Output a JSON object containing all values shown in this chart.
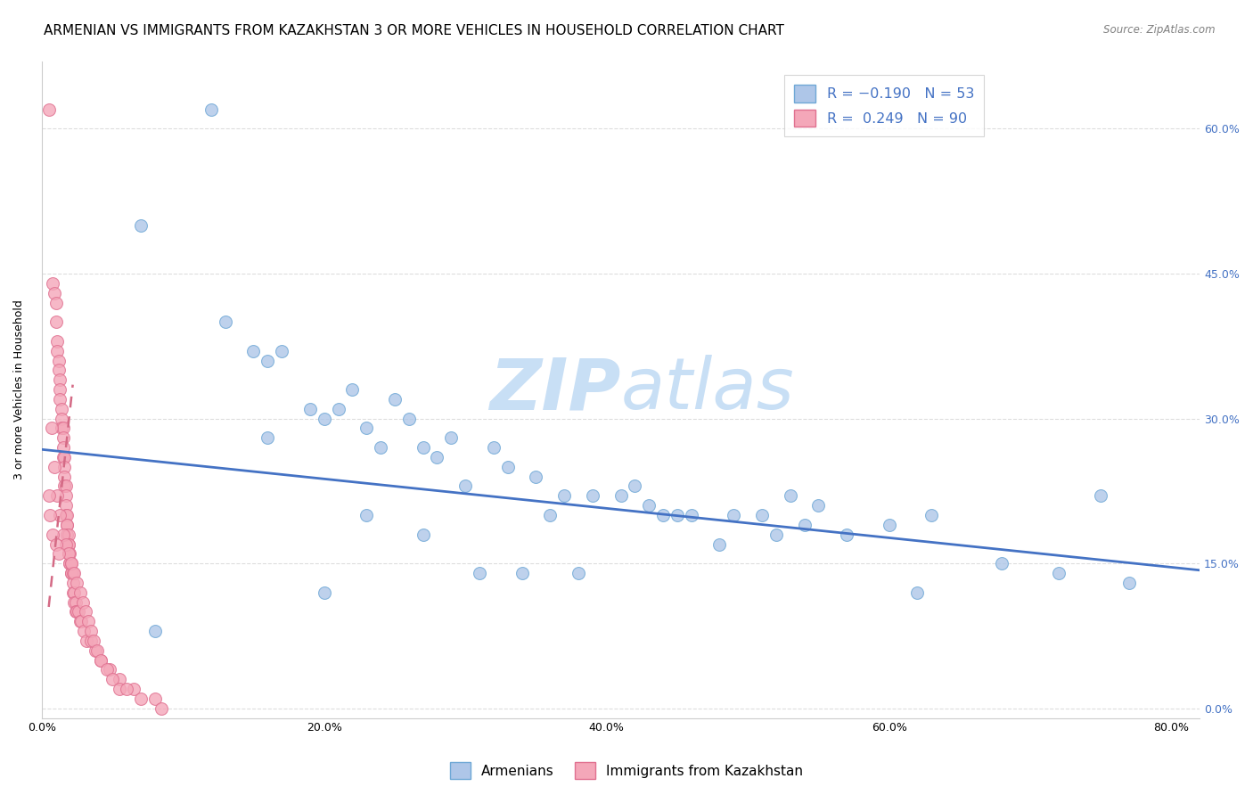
{
  "title": "ARMENIAN VS IMMIGRANTS FROM KAZAKHSTAN 3 OR MORE VEHICLES IN HOUSEHOLD CORRELATION CHART",
  "source": "Source: ZipAtlas.com",
  "ylabel": "3 or more Vehicles in Household",
  "xlabel_ticks": [
    "0.0%",
    "20.0%",
    "40.0%",
    "60.0%",
    "80.0%"
  ],
  "xlabel_vals": [
    0.0,
    0.2,
    0.4,
    0.6,
    0.8
  ],
  "ylabel_ticks": [
    "0.0%",
    "15.0%",
    "30.0%",
    "45.0%",
    "60.0%"
  ],
  "ylabel_vals": [
    0.0,
    0.15,
    0.3,
    0.45,
    0.6
  ],
  "xlim": [
    0.0,
    0.82
  ],
  "ylim": [
    -0.01,
    0.67
  ],
  "legend1_label": "R = -0.190   N = 53",
  "legend2_label": "R =  0.249   N = 90",
  "legend1_color": "#aec6e8",
  "legend2_color": "#f4a7b9",
  "legend1_edge": "#6fa8d6",
  "legend2_edge": "#e07090",
  "watermark_zip": "ZIP",
  "watermark_atlas": "atlas",
  "blue_scatter_x": [
    0.12,
    0.07,
    0.13,
    0.15,
    0.17,
    0.19,
    0.22,
    0.2,
    0.16,
    0.23,
    0.21,
    0.24,
    0.26,
    0.25,
    0.27,
    0.29,
    0.3,
    0.28,
    0.32,
    0.33,
    0.35,
    0.37,
    0.36,
    0.39,
    0.41,
    0.43,
    0.44,
    0.42,
    0.46,
    0.49,
    0.51,
    0.52,
    0.54,
    0.55,
    0.75,
    0.16,
    0.2,
    0.23,
    0.27,
    0.31,
    0.34,
    0.38,
    0.45,
    0.48,
    0.53,
    0.57,
    0.6,
    0.63,
    0.68,
    0.72,
    0.77,
    0.62,
    0.08
  ],
  "blue_scatter_y": [
    0.62,
    0.5,
    0.4,
    0.37,
    0.37,
    0.31,
    0.33,
    0.3,
    0.28,
    0.29,
    0.31,
    0.27,
    0.3,
    0.32,
    0.27,
    0.28,
    0.23,
    0.26,
    0.27,
    0.25,
    0.24,
    0.22,
    0.2,
    0.22,
    0.22,
    0.21,
    0.2,
    0.23,
    0.2,
    0.2,
    0.2,
    0.18,
    0.19,
    0.21,
    0.22,
    0.36,
    0.12,
    0.2,
    0.18,
    0.14,
    0.14,
    0.14,
    0.2,
    0.17,
    0.22,
    0.18,
    0.19,
    0.2,
    0.15,
    0.14,
    0.13,
    0.12,
    0.08
  ],
  "pink_scatter_x": [
    0.005,
    0.008,
    0.009,
    0.01,
    0.01,
    0.011,
    0.011,
    0.012,
    0.012,
    0.013,
    0.013,
    0.013,
    0.014,
    0.014,
    0.014,
    0.015,
    0.015,
    0.015,
    0.015,
    0.016,
    0.016,
    0.016,
    0.016,
    0.017,
    0.017,
    0.017,
    0.017,
    0.018,
    0.018,
    0.018,
    0.018,
    0.019,
    0.019,
    0.019,
    0.019,
    0.02,
    0.02,
    0.02,
    0.021,
    0.021,
    0.021,
    0.022,
    0.022,
    0.022,
    0.023,
    0.023,
    0.024,
    0.024,
    0.025,
    0.026,
    0.027,
    0.028,
    0.03,
    0.032,
    0.035,
    0.038,
    0.042,
    0.048,
    0.055,
    0.065,
    0.08,
    0.007,
    0.009,
    0.011,
    0.013,
    0.015,
    0.017,
    0.019,
    0.021,
    0.023,
    0.025,
    0.027,
    0.029,
    0.031,
    0.033,
    0.035,
    0.037,
    0.039,
    0.042,
    0.046,
    0.05,
    0.055,
    0.06,
    0.07,
    0.085,
    0.005,
    0.006,
    0.008,
    0.01,
    0.012
  ],
  "pink_scatter_y": [
    0.62,
    0.44,
    0.43,
    0.42,
    0.4,
    0.38,
    0.37,
    0.36,
    0.35,
    0.34,
    0.33,
    0.32,
    0.31,
    0.3,
    0.29,
    0.29,
    0.28,
    0.27,
    0.26,
    0.26,
    0.25,
    0.24,
    0.23,
    0.23,
    0.22,
    0.21,
    0.2,
    0.2,
    0.19,
    0.19,
    0.18,
    0.18,
    0.17,
    0.17,
    0.16,
    0.16,
    0.15,
    0.15,
    0.15,
    0.14,
    0.14,
    0.14,
    0.13,
    0.12,
    0.12,
    0.11,
    0.11,
    0.1,
    0.1,
    0.1,
    0.09,
    0.09,
    0.08,
    0.07,
    0.07,
    0.06,
    0.05,
    0.04,
    0.03,
    0.02,
    0.01,
    0.29,
    0.25,
    0.22,
    0.2,
    0.18,
    0.17,
    0.16,
    0.15,
    0.14,
    0.13,
    0.12,
    0.11,
    0.1,
    0.09,
    0.08,
    0.07,
    0.06,
    0.05,
    0.04,
    0.03,
    0.02,
    0.02,
    0.01,
    0.0,
    0.22,
    0.2,
    0.18,
    0.17,
    0.16
  ],
  "blue_line_x": [
    0.0,
    0.82
  ],
  "blue_line_y": [
    0.268,
    0.143
  ],
  "pink_line_x": [
    0.005,
    0.022
  ],
  "pink_line_y": [
    0.105,
    0.335
  ],
  "background_color": "#ffffff",
  "grid_color": "#dddddd",
  "title_fontsize": 11,
  "axis_label_fontsize": 9,
  "tick_fontsize": 9,
  "right_tick_color": "#4472c4",
  "watermark_color_zip": "#c8dff5",
  "watermark_color_atlas": "#c8dff5",
  "watermark_fontsize": 58
}
